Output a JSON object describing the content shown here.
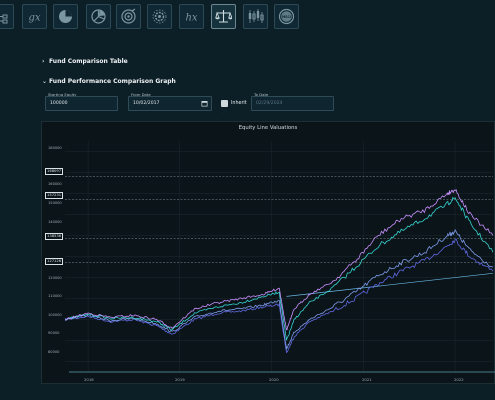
{
  "toolbar": {
    "icons": [
      "tree-icon",
      "gx-icon",
      "pie-chart-icon",
      "pie-split-icon",
      "target-chart-icon",
      "gear-network-icon",
      "hx-icon",
      "balance-scale-icon",
      "candlestick-icon",
      "badge-icon"
    ],
    "gx_text": "gx",
    "hx_text": "hx",
    "badge_text": "MSCI"
  },
  "sections": {
    "comparison_table": "Fund Comparison Table",
    "performance_graph": "Fund Performance Comparison Graph"
  },
  "form": {
    "starting_equity_label": "Starting Equity",
    "starting_equity_value": "100000",
    "from_date_label": "From Date",
    "from_date_value": "10/02/2017",
    "inherit_label": "Inherit",
    "inherit_checked": true,
    "to_date_label": "To Date",
    "to_date_value": "02/29/2024"
  },
  "chart": {
    "title": "Equity Line Valuations",
    "y_ticks": [
      "180000",
      "170000",
      "160000",
      "150000",
      "140000",
      "130000",
      "120000",
      "110000",
      "100000",
      "90000",
      "80000"
    ],
    "boxed_labels": [
      "168097",
      "157231",
      "138536",
      "127126"
    ],
    "x_ticks": [
      "2018",
      "2019",
      "2020",
      "2021",
      "2022"
    ],
    "colors": {
      "violet": "#c890ff",
      "cyan": "#36d4d0",
      "royal": "#5f68e0",
      "steel": "#7d9be8",
      "trend": "#69b6e4",
      "grid": "#1d2b31",
      "guide": "#7e8f96"
    }
  },
  "chart_data": {
    "type": "line",
    "title": "Equity Line Valuations",
    "xlabel": "",
    "ylabel": "",
    "x": [
      "2017-10",
      "2018-01",
      "2018-04",
      "2018-07",
      "2018-10",
      "2018-12",
      "2019-03",
      "2019-06",
      "2019-09",
      "2019-12",
      "2020-02",
      "2020-03",
      "2020-04",
      "2020-06",
      "2020-09",
      "2020-12",
      "2021-03",
      "2021-06",
      "2021-09",
      "2021-12",
      "2022-01",
      "2022-03",
      "2022-06"
    ],
    "series": [
      {
        "values": [
          100000,
          103000,
          101000,
          102000,
          100000,
          96000,
          105000,
          108000,
          110000,
          112000,
          115000,
          95000,
          105000,
          112000,
          118000,
          128000,
          140000,
          148000,
          152000,
          160000,
          162000,
          150000,
          140000
        ]
      },
      {
        "values": [
          100000,
          102500,
          100500,
          101000,
          99000,
          95000,
          103000,
          106000,
          108000,
          111000,
          113000,
          90000,
          100000,
          108000,
          115000,
          125000,
          135000,
          142000,
          148000,
          155000,
          158000,
          146000,
          132000
        ]
      },
      {
        "values": [
          100000,
          102000,
          99500,
          100500,
          98000,
          94000,
          101000,
          104000,
          105000,
          107000,
          109000,
          86000,
          94000,
          100000,
          106000,
          113000,
          121000,
          127000,
          132000,
          140000,
          142000,
          133000,
          125000
        ]
      },
      {
        "values": [
          100000,
          101500,
          99000,
          100000,
          97000,
          93000,
          100000,
          103000,
          104000,
          106000,
          107000,
          84000,
          92000,
          99000,
          104000,
          110000,
          117000,
          123000,
          128000,
          135000,
          138000,
          130000,
          123000
        ]
      }
    ],
    "ylim": [
      75000,
      185000
    ]
  }
}
